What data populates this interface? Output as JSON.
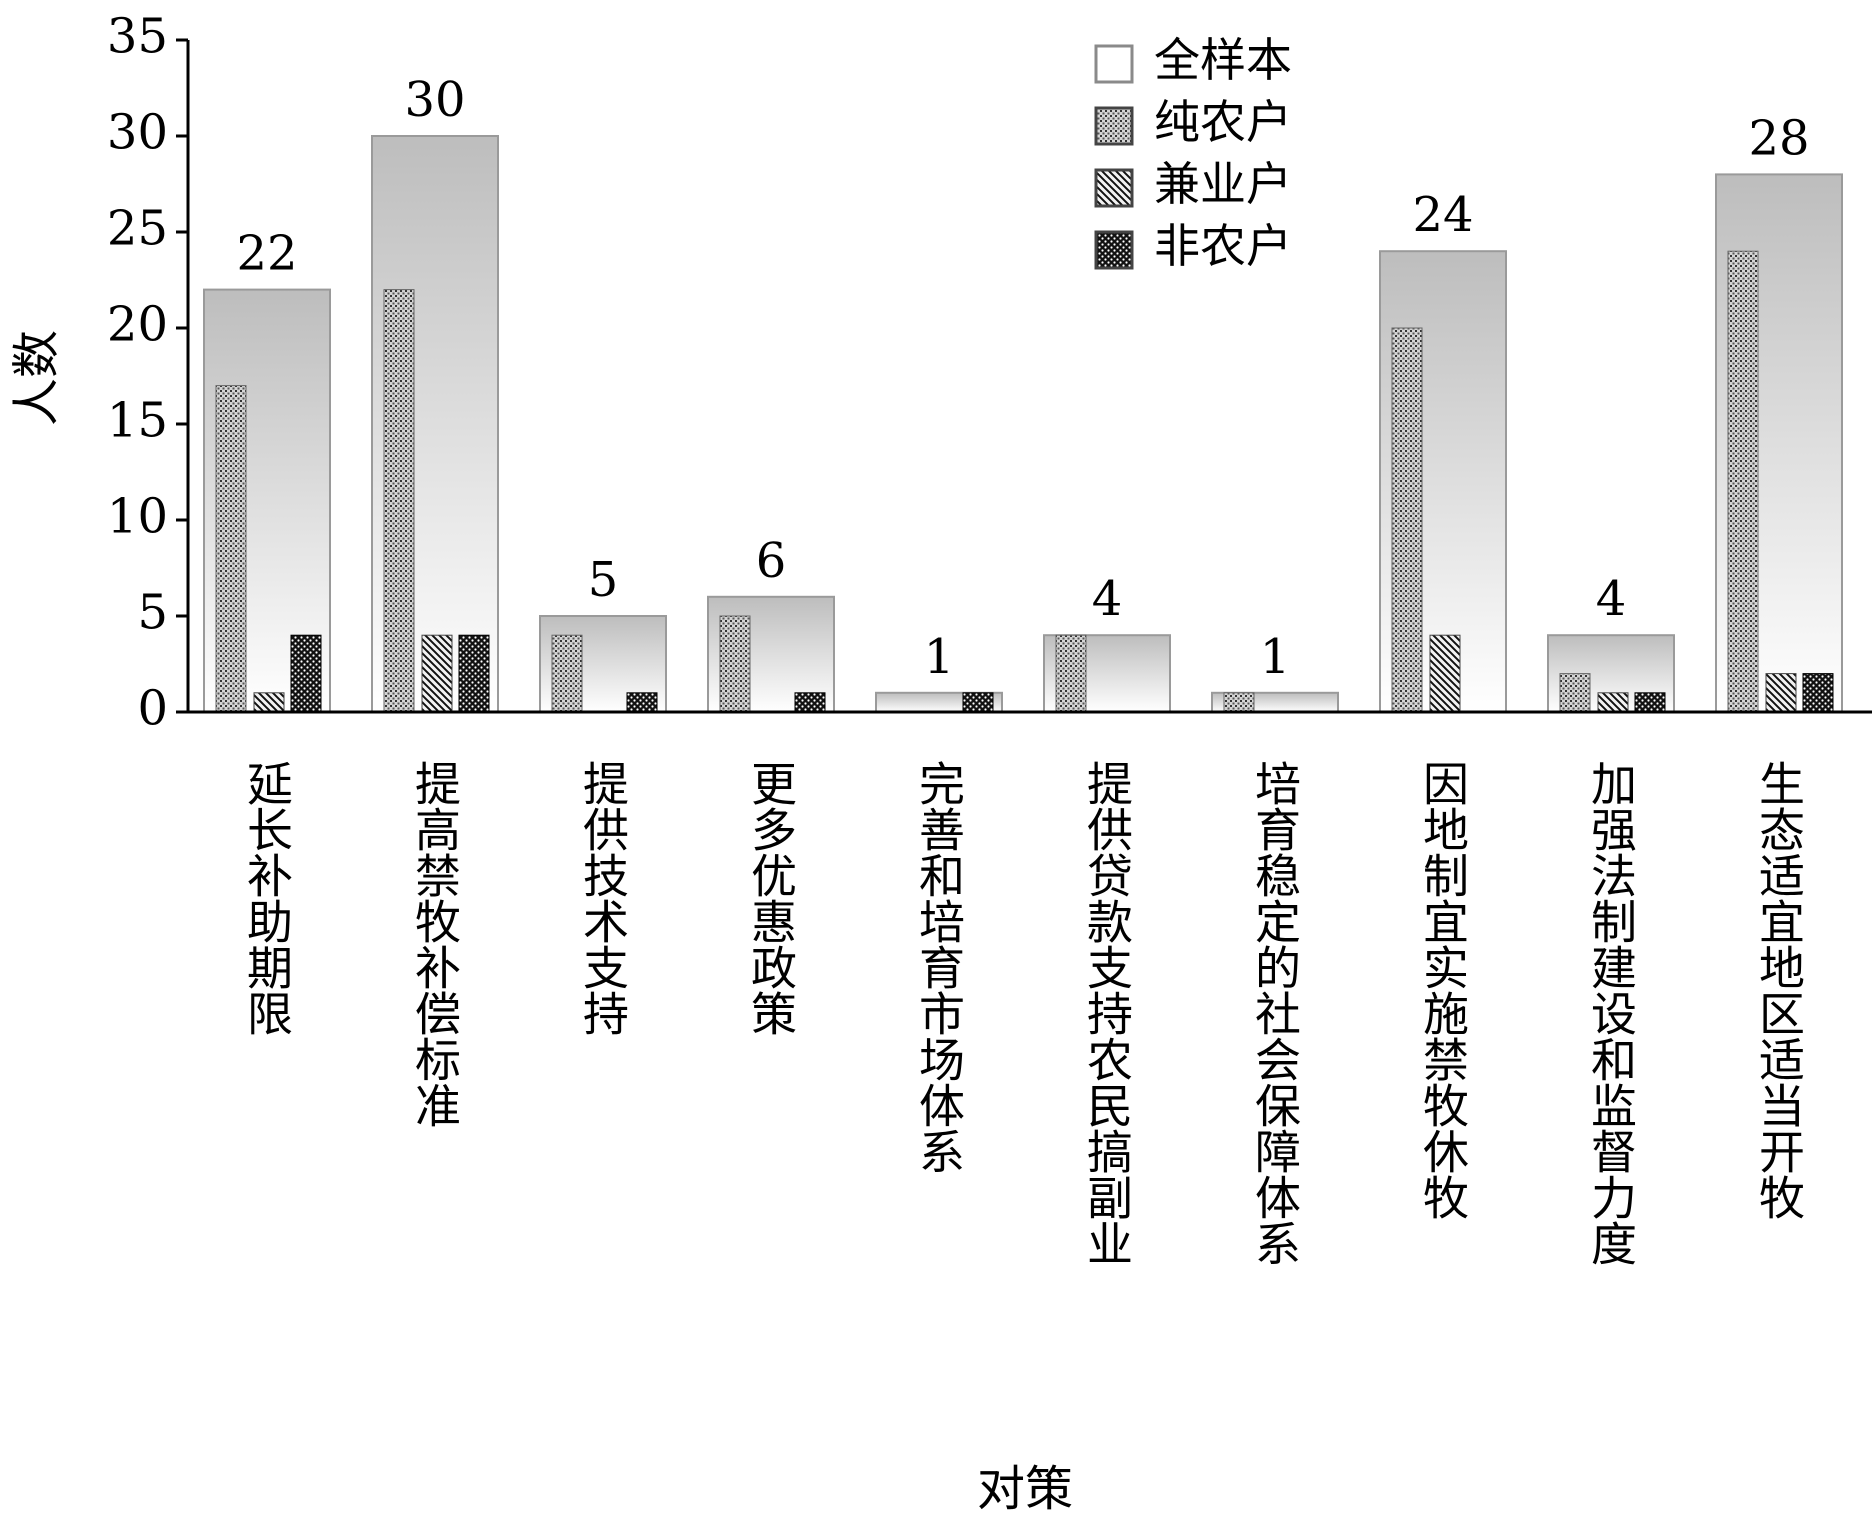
{
  "chart_data": {
    "type": "bar",
    "xlabel": "对策",
    "ylabel": "人数",
    "ylim": [
      0,
      35
    ],
    "yticks": [
      0,
      5,
      10,
      15,
      20,
      25,
      30,
      35
    ],
    "grid": false,
    "legend_position": "top-right",
    "categories": [
      "延长补助期限",
      "提高禁牧补偿标准",
      "提供技术支持",
      "更多优惠政策",
      "完善和培育市场体系",
      "提供贷款支持农民搞副业",
      "培育稳定的社会保障体系",
      "因地制宜实施禁牧休牧",
      "加强法制建设和监督力度",
      "生态适宜地区适当开牧"
    ],
    "series": [
      {
        "name": "全样本",
        "values": [
          22,
          30,
          5,
          6,
          1,
          4,
          1,
          24,
          4,
          28
        ]
      },
      {
        "name": "纯农户",
        "values": [
          17,
          22,
          4,
          5,
          0,
          4,
          1,
          20,
          2,
          24
        ]
      },
      {
        "name": "兼业户",
        "values": [
          1,
          4,
          0,
          0,
          0,
          0,
          0,
          4,
          1,
          2
        ]
      },
      {
        "name": "非农户",
        "values": [
          4,
          4,
          1,
          1,
          1,
          0,
          0,
          0,
          1,
          2
        ]
      }
    ],
    "data_labels": [
      "22",
      "30",
      "5",
      "6",
      "1",
      "4",
      "1",
      "24",
      "4",
      "28"
    ]
  }
}
